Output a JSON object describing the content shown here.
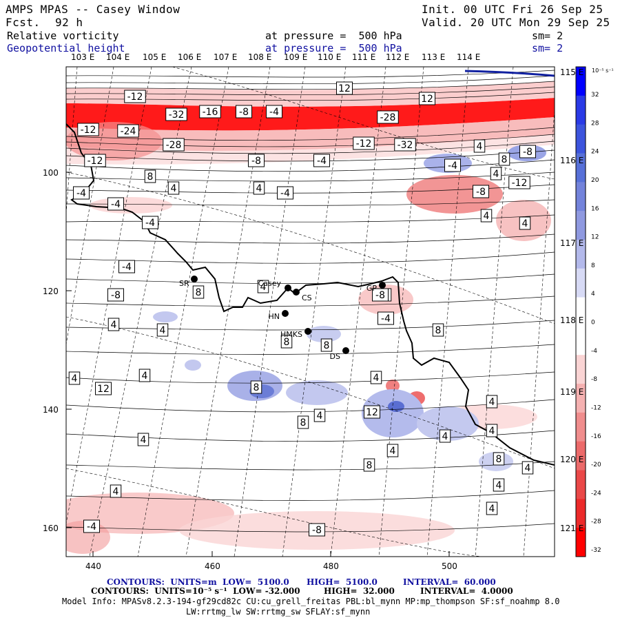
{
  "header": {
    "title": "AMPS MPAS -- Casey Window",
    "fcst_label": "Fcst.",
    "fcst_value": "92 h",
    "init": "Init. 00 UTC Fri 26 Sep 25",
    "valid": "Valid. 20 UTC Mon 29 Sep 25",
    "field1_name": "Relative vorticity",
    "field1_pressure": "at pressure =  500 hPa",
    "field1_sm": "sm= 2",
    "field2_name": "Geopotential height",
    "field2_pressure": "at pressure =  500 hPa",
    "field2_sm": "sm= 2"
  },
  "map": {
    "lon_top": [
      "103 E",
      "104 E",
      "105 E",
      "106 E",
      "107 E",
      "108 E",
      "109 E",
      "110 E",
      "111 E",
      "112 E",
      "113 E",
      "114 E"
    ],
    "lon_right": [
      "115 E",
      "116 E",
      "117 E",
      "118 E",
      "119 E",
      "120 E",
      "121 E"
    ],
    "y_axis": [
      "100",
      "120",
      "140",
      "160"
    ],
    "x_axis": [
      "440",
      "460",
      "480",
      "500"
    ],
    "stations": [
      "SR",
      "Casey",
      "CS",
      "HN",
      "HMKS",
      "DS",
      "GP"
    ],
    "contour_labels": [
      "-12",
      "-32",
      "-16",
      "-8",
      "-4",
      "-28",
      "-12",
      "-24",
      "-28",
      "-12",
      "-32",
      "-12",
      "-8",
      "-4",
      "8",
      "4",
      "4",
      "-4",
      "12",
      "12",
      "4",
      "-8",
      "-4",
      "8",
      "-12",
      "-8",
      "-4",
      "-4",
      "-4",
      "4",
      "4",
      "-4",
      "-8",
      "8",
      "4",
      "4",
      "-4",
      "4",
      "4",
      "8",
      "8",
      "8",
      "4",
      "4",
      "12",
      "8",
      "4",
      "8",
      "4",
      "12",
      "4",
      "8",
      "4",
      "4",
      "4",
      "8",
      "4",
      "4",
      "4",
      "4",
      "4",
      "-4",
      "-8",
      "-8",
      "4"
    ]
  },
  "colorbar": {
    "unit": "10⁻⁵ s⁻¹",
    "labels": [
      "32",
      "28",
      "24",
      "20",
      "16",
      "12",
      "8",
      "4",
      "0",
      "-4",
      "-8",
      "-12",
      "-16",
      "-20",
      "-24",
      "-28",
      "-32"
    ],
    "colors": [
      "#0000ff",
      "#2a3ae6",
      "#3c54dd",
      "#5770d8",
      "#7383db",
      "#8f99e0",
      "#b3b9eb",
      "#d7daf5",
      "#ffffff",
      "#ffffff",
      "#fad4d4",
      "#f5b1b1",
      "#f08d8d",
      "#ec6a6a",
      "#ea4848",
      "#ec2a2a",
      "#ff0000"
    ]
  },
  "footer": {
    "line1_a": "CONTOURS:  UNITS=m  LOW=  5100.0",
    "line1_b": "HIGH=  5100.0",
    "line1_c": "INTERVAL=  60.000",
    "line2_a": "CONTOURS:  UNITS=10⁻⁵ s⁻¹  LOW= -32.000",
    "line2_b": "HIGH=  32.000",
    "line2_c": "INTERVAL=  4.0000",
    "line3": "Model Info: MPASv8.2.3-194-gf29cd82c CU:cu_grell_freitas PBL:bl_mynn MP:mp_thompson SF:sf_noahmp 8.0",
    "line4": "LW:rrtmg_lw SW:rrtmg_sw SFLAY:sf_mynn"
  }
}
